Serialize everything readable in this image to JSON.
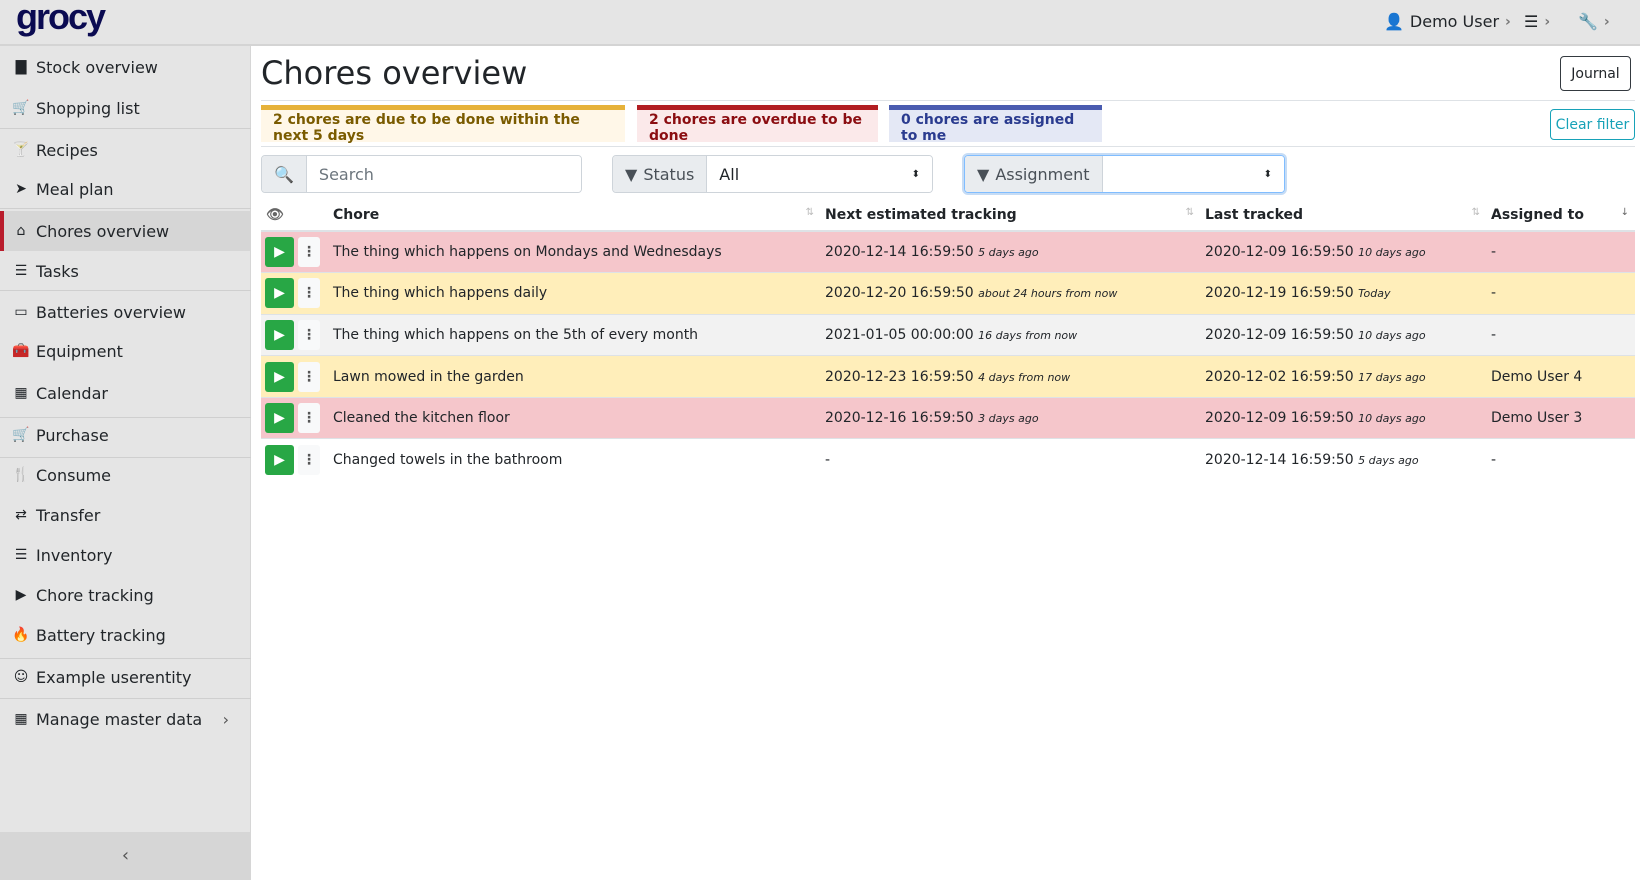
{
  "app": {
    "logo": "grocy"
  },
  "topbar": {
    "user": "Demo User"
  },
  "sidebar": {
    "items": [
      {
        "label": "Stock overview",
        "icon": "box-icon"
      },
      {
        "label": "Shopping list",
        "icon": "cart-icon"
      },
      {
        "label": "Recipes",
        "icon": "cocktail-icon"
      },
      {
        "label": "Meal plan",
        "icon": "paper-plane-icon"
      },
      {
        "label": "Chores overview",
        "icon": "home-icon"
      },
      {
        "label": "Tasks",
        "icon": "tasks-icon"
      },
      {
        "label": "Batteries overview",
        "icon": "battery-icon"
      },
      {
        "label": "Equipment",
        "icon": "toolbox-icon"
      },
      {
        "label": "Calendar",
        "icon": "calendar-icon"
      },
      {
        "label": "Purchase",
        "icon": "cart-icon"
      },
      {
        "label": "Consume",
        "icon": "utensils-icon"
      },
      {
        "label": "Transfer",
        "icon": "exchange-icon"
      },
      {
        "label": "Inventory",
        "icon": "list-icon"
      },
      {
        "label": "Chore tracking",
        "icon": "play-icon"
      },
      {
        "label": "Battery tracking",
        "icon": "fire-icon"
      },
      {
        "label": "Example userentity",
        "icon": "smile-icon"
      },
      {
        "label": "Manage master data",
        "icon": "table-icon"
      }
    ],
    "active": "Chores overview"
  },
  "page": {
    "title": "Chores overview",
    "journal": "Journal",
    "clear_filter": "Clear filter"
  },
  "alerts": {
    "due_soon": "2 chores are due to be done within the next 5 days",
    "overdue": "2 chores are overdue to be done",
    "assigned": "0 chores are assigned to me"
  },
  "filters": {
    "search_placeholder": "Search",
    "status_label": "Status",
    "status_value": "All",
    "assignment_label": "Assignment",
    "assignment_value": ""
  },
  "table": {
    "columns": [
      "Chore",
      "Next estimated tracking",
      "Last tracked",
      "Assigned to"
    ],
    "rows": [
      {
        "chore": "The thing which happens on Mondays and Wednesdays",
        "next": "2020-12-14 16:59:50",
        "next_rel": "5 days ago",
        "last": "2020-12-09 16:59:50",
        "last_rel": "10 days ago",
        "assigned": "-",
        "status": "overdue"
      },
      {
        "chore": "The thing which happens daily",
        "next": "2020-12-20 16:59:50",
        "next_rel": "about 24 hours from now",
        "last": "2020-12-19 16:59:50",
        "last_rel": "Today",
        "assigned": "-",
        "status": "due-soon"
      },
      {
        "chore": "The thing which happens on the 5th of every month",
        "next": "2021-01-05 00:00:00",
        "next_rel": "16 days from now",
        "last": "2020-12-09 16:59:50",
        "last_rel": "10 days ago",
        "assigned": "-",
        "status": "normal"
      },
      {
        "chore": "Lawn mowed in the garden",
        "next": "2020-12-23 16:59:50",
        "next_rel": "4 days from now",
        "last": "2020-12-02 16:59:50",
        "last_rel": "17 days ago",
        "assigned": "Demo User 4",
        "status": "due-soon"
      },
      {
        "chore": "Cleaned the kitchen floor",
        "next": "2020-12-16 16:59:50",
        "next_rel": "3 days ago",
        "last": "2020-12-09 16:59:50",
        "last_rel": "10 days ago",
        "assigned": "Demo User 3",
        "status": "overdue"
      },
      {
        "chore": "Changed towels in the bathroom",
        "next": "-",
        "next_rel": "",
        "last": "2020-12-14 16:59:50",
        "last_rel": "5 days ago",
        "assigned": "-",
        "status": "none"
      }
    ]
  },
  "colors": {
    "overdue": "#f5c6cb",
    "due-soon": "#ffeeba",
    "normal": "#f2f2f2",
    "none": "#ffffff",
    "play": "#28a745",
    "accent": "#17a2b8"
  }
}
